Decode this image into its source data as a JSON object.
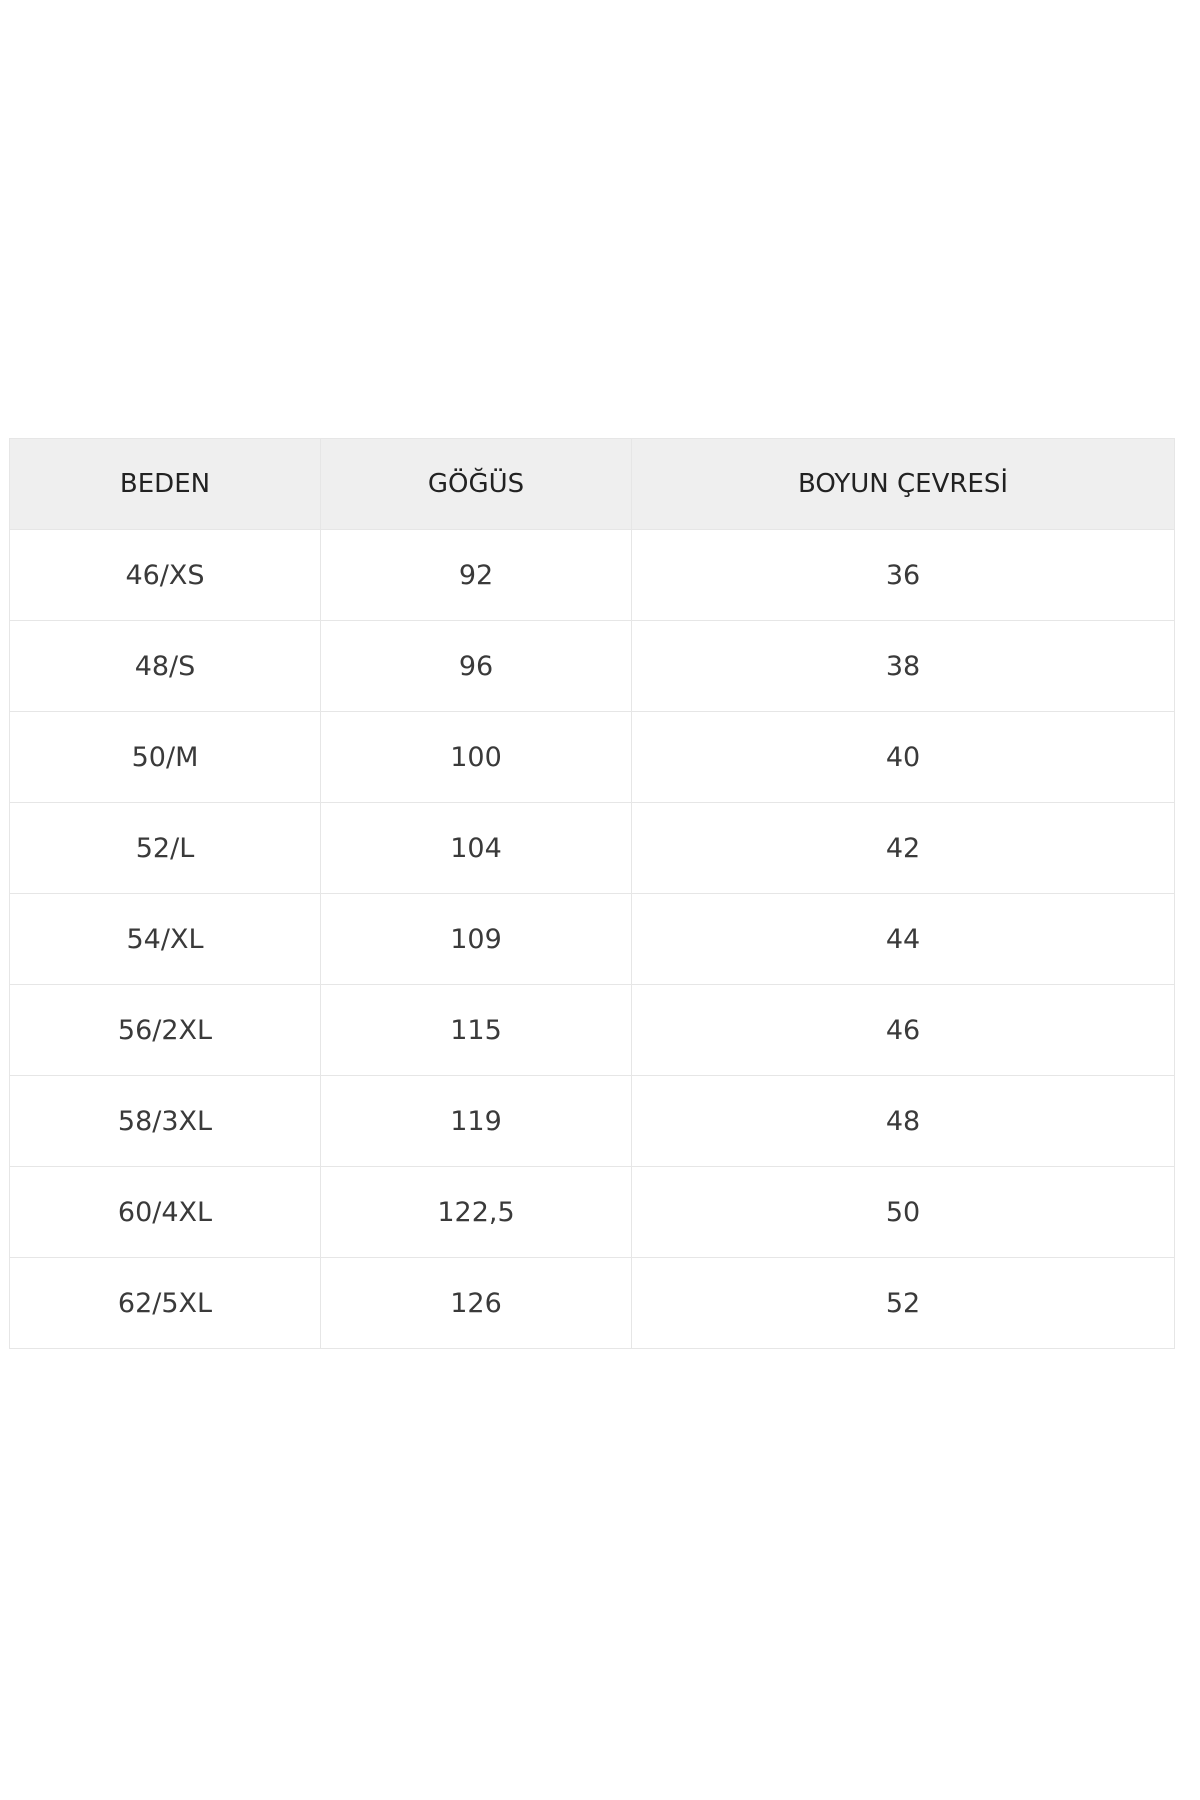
{
  "table": {
    "headers": [
      "BEDEN",
      "GÖĞÜS",
      "BOYUN ÇEVRESİ"
    ],
    "rows": [
      [
        "46/XS",
        "92",
        "36"
      ],
      [
        "48/S",
        "96",
        "38"
      ],
      [
        "50/M",
        "100",
        "40"
      ],
      [
        "52/L",
        "104",
        "42"
      ],
      [
        "54/XL",
        "109",
        "44"
      ],
      [
        "56/2XL",
        "115",
        "46"
      ],
      [
        "58/3XL",
        "119",
        "48"
      ],
      [
        "60/4XL",
        "122,5",
        "50"
      ],
      [
        "62/5XL",
        "126",
        "52"
      ]
    ]
  }
}
